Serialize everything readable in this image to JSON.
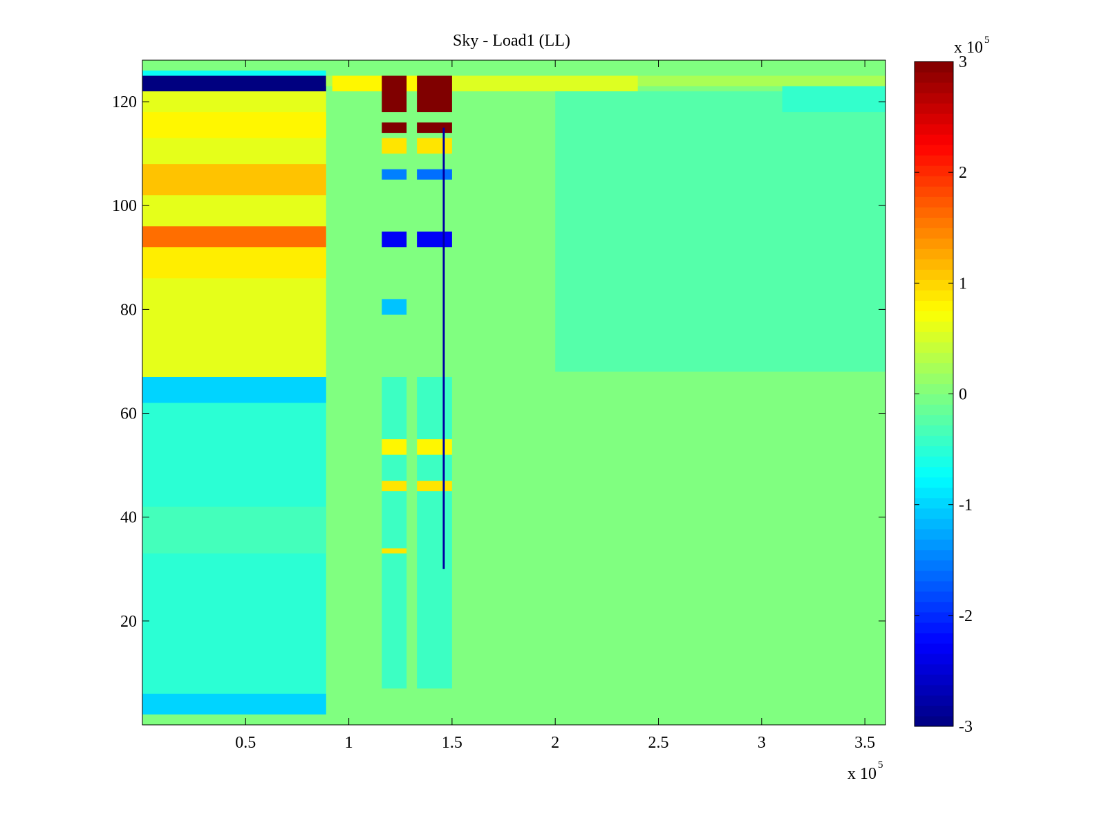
{
  "chart_data": {
    "type": "heatmap",
    "title": "Sky - Load1 (LL)",
    "xlabel": "",
    "ylabel": "",
    "xlim": [
      0,
      360000
    ],
    "ylim": [
      0,
      128
    ],
    "x_ticks": [
      50000,
      100000,
      150000,
      200000,
      250000,
      300000,
      350000
    ],
    "x_tick_labels": [
      "0.5",
      "1",
      "1.5",
      "2",
      "2.5",
      "3",
      "3.5"
    ],
    "x_exponent_label": {
      "base": "x 10",
      "exp": "5"
    },
    "y_ticks": [
      20,
      40,
      60,
      80,
      100,
      120
    ],
    "y_tick_labels": [
      "20",
      "40",
      "60",
      "80",
      "100",
      "120"
    ],
    "colormap": "jet",
    "colorbar": {
      "clim": [
        -300000,
        300000
      ],
      "ticks": [
        -300000,
        -200000,
        -100000,
        0,
        100000,
        200000,
        300000
      ],
      "tick_labels": [
        "-3",
        "-2",
        "-1",
        "0",
        "1",
        "2",
        "3"
      ],
      "exponent_label": {
        "base": "x 10",
        "exp": "5"
      },
      "placement": "right"
    },
    "background_value": 0,
    "grid": false,
    "regions": [
      {
        "x": [
          0,
          89000
        ],
        "y": [
          2,
          67
        ],
        "value": -50000
      },
      {
        "x": [
          0,
          89000
        ],
        "y": [
          62,
          67
        ],
        "value": -100000
      },
      {
        "x": [
          0,
          89000
        ],
        "y": [
          2,
          6
        ],
        "value": -100000
      },
      {
        "x": [
          0,
          89000
        ],
        "y": [
          33,
          42
        ],
        "value": -35000
      },
      {
        "x": [
          0,
          89000
        ],
        "y": [
          67,
          126
        ],
        "value": 60000
      },
      {
        "x": [
          0,
          89000
        ],
        "y": [
          86,
          92
        ],
        "value": 85000
      },
      {
        "x": [
          0,
          89000
        ],
        "y": [
          92,
          96
        ],
        "value": 160000
      },
      {
        "x": [
          0,
          89000
        ],
        "y": [
          102,
          108
        ],
        "value": 110000
      },
      {
        "x": [
          0,
          89000
        ],
        "y": [
          113,
          118
        ],
        "value": 80000
      },
      {
        "x": [
          0,
          89000
        ],
        "y": [
          122,
          125
        ],
        "value": -300000
      },
      {
        "x": [
          0,
          89000
        ],
        "y": [
          125,
          126
        ],
        "value": -70000
      },
      {
        "x": [
          89000,
          360000
        ],
        "y": [
          123,
          125
        ],
        "value": 25000
      },
      {
        "x": [
          92000,
          135000
        ],
        "y": [
          122,
          125
        ],
        "value": 80000
      },
      {
        "x": [
          150000,
          240000
        ],
        "y": [
          122,
          125
        ],
        "value": 55000
      },
      {
        "x": [
          200000,
          360000
        ],
        "y": [
          68,
          122
        ],
        "value": -25000
      },
      {
        "x": [
          310000,
          360000
        ],
        "y": [
          118,
          123
        ],
        "value": -45000
      },
      {
        "x": [
          116000,
          128000
        ],
        "y": [
          7,
          67
        ],
        "value": -40000
      },
      {
        "x": [
          116000,
          128000
        ],
        "y": [
          118,
          125
        ],
        "value": 300000
      },
      {
        "x": [
          116000,
          128000
        ],
        "y": [
          114,
          116
        ],
        "value": 300000
      },
      {
        "x": [
          116000,
          128000
        ],
        "y": [
          110,
          113
        ],
        "value": 90000
      },
      {
        "x": [
          116000,
          128000
        ],
        "y": [
          105,
          107
        ],
        "value": -150000
      },
      {
        "x": [
          116000,
          128000
        ],
        "y": [
          92,
          95
        ],
        "value": -230000
      },
      {
        "x": [
          116000,
          128000
        ],
        "y": [
          79,
          82
        ],
        "value": -110000
      },
      {
        "x": [
          116000,
          128000
        ],
        "y": [
          52,
          55
        ],
        "value": 80000
      },
      {
        "x": [
          116000,
          128000
        ],
        "y": [
          45,
          47
        ],
        "value": 90000
      },
      {
        "x": [
          116000,
          128000
        ],
        "y": [
          33,
          34
        ],
        "value": 90000
      },
      {
        "x": [
          133000,
          150000
        ],
        "y": [
          7,
          67
        ],
        "value": -40000
      },
      {
        "x": [
          133000,
          150000
        ],
        "y": [
          118,
          125
        ],
        "value": 300000
      },
      {
        "x": [
          133000,
          150000
        ],
        "y": [
          114,
          116
        ],
        "value": 300000
      },
      {
        "x": [
          133000,
          150000
        ],
        "y": [
          110,
          113
        ],
        "value": 90000
      },
      {
        "x": [
          133000,
          150000
        ],
        "y": [
          105,
          107
        ],
        "value": -160000
      },
      {
        "x": [
          133000,
          150000
        ],
        "y": [
          92,
          95
        ],
        "value": -230000
      },
      {
        "x": [
          133000,
          150000
        ],
        "y": [
          52,
          55
        ],
        "value": 80000
      },
      {
        "x": [
          133000,
          150000
        ],
        "y": [
          45,
          47
        ],
        "value": 90000
      },
      {
        "x": [
          145500,
          146500
        ],
        "y": [
          30,
          115
        ],
        "value": -280000
      }
    ]
  }
}
